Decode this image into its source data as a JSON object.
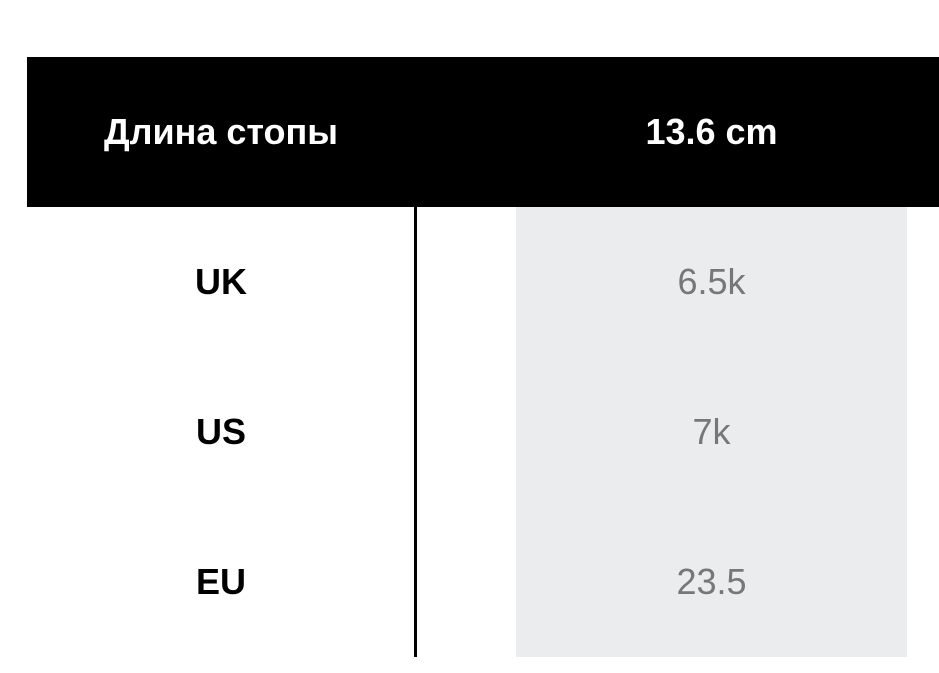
{
  "header": {
    "label": "Длина стопы",
    "value": "13.6 cm"
  },
  "rows": [
    {
      "label": "UK",
      "value": "6.5k"
    },
    {
      "label": "US",
      "value": "7k"
    },
    {
      "label": "EU",
      "value": "23.5"
    }
  ],
  "colors": {
    "header_bg": "#000000",
    "value_bg": "#ebecee",
    "value_text": "#777777"
  }
}
